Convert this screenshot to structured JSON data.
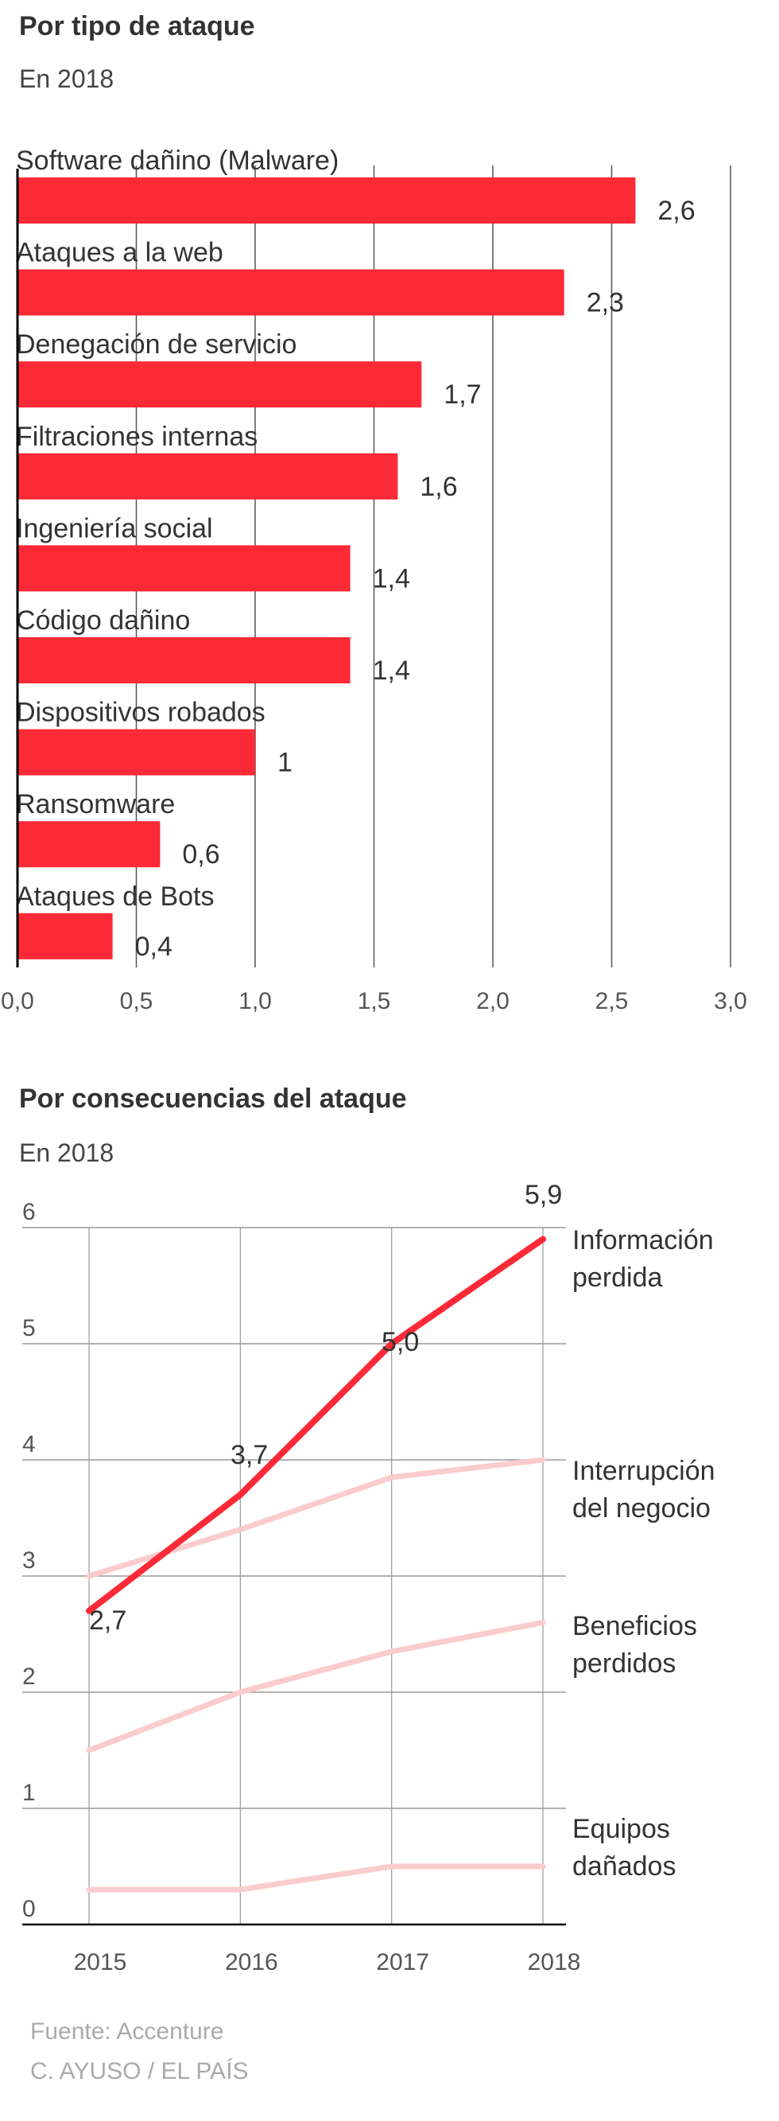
{
  "chart_data": [
    {
      "type": "bar",
      "orientation": "horizontal",
      "title": "Por tipo de ataque",
      "subtitle": "En 2018",
      "categories": [
        "Software dañino (Malware)",
        "Ataques a la web",
        "Denegación de servicio",
        "Filtraciones internas",
        "Ingeniería social",
        "Código dañino",
        "Dispositivos robados",
        "Ransomware",
        "Ataques de Bots"
      ],
      "values": [
        2.6,
        2.3,
        1.7,
        1.6,
        1.4,
        1.4,
        1,
        0.6,
        0.4
      ],
      "value_labels": [
        "2,6",
        "2,3",
        "1,7",
        "1,6",
        "1,4",
        "1,4",
        "1",
        "0,6",
        "0,4"
      ],
      "xlim": [
        0,
        3
      ],
      "xticks": [
        0,
        0.5,
        1,
        1.5,
        2,
        2.5,
        3
      ],
      "xtick_labels": [
        "0,0",
        "0,5",
        "1,0",
        "1,5",
        "2,0",
        "2,5",
        "3,0"
      ],
      "grid": true,
      "color": "#fc2a37"
    },
    {
      "type": "line",
      "title": "Por consecuencias del ataque",
      "subtitle": "En 2018",
      "x": [
        "2015",
        "2016",
        "2017",
        "2018"
      ],
      "ylim": [
        0,
        6
      ],
      "yticks": [
        0,
        1,
        2,
        3,
        4,
        5,
        6
      ],
      "ytick_labels": [
        "0",
        "1",
        "2",
        "3",
        "4",
        "5",
        "6"
      ],
      "grid": true,
      "series": [
        {
          "name": "Interrupción del negocio",
          "name_lines": [
            "Interrupción",
            "del negocio"
          ],
          "values": [
            3.0,
            3.4,
            3.85,
            4.0
          ],
          "color": "#fbcccd"
        },
        {
          "name": "Beneficios perdidos",
          "name_lines": [
            "Beneficios",
            "perdidos"
          ],
          "values": [
            1.5,
            2.0,
            2.35,
            2.6
          ],
          "color": "#fbcccd"
        },
        {
          "name": "Equipos dañados",
          "name_lines": [
            "Equipos",
            "dañados"
          ],
          "values": [
            0.3,
            0.3,
            0.5,
            0.5
          ],
          "color": "#fbcccd"
        },
        {
          "name": "Información perdida",
          "name_lines": [
            "Información",
            "perdida"
          ],
          "values": [
            2.7,
            3.7,
            5.0,
            5.9
          ],
          "value_labels": [
            "2,7",
            "3,7",
            "5,0",
            "5,9"
          ],
          "color": "#fc2a37"
        }
      ]
    }
  ],
  "footer": {
    "source": "Fuente: Accenture",
    "credit": "C. AYUSO / EL PAÍS"
  }
}
